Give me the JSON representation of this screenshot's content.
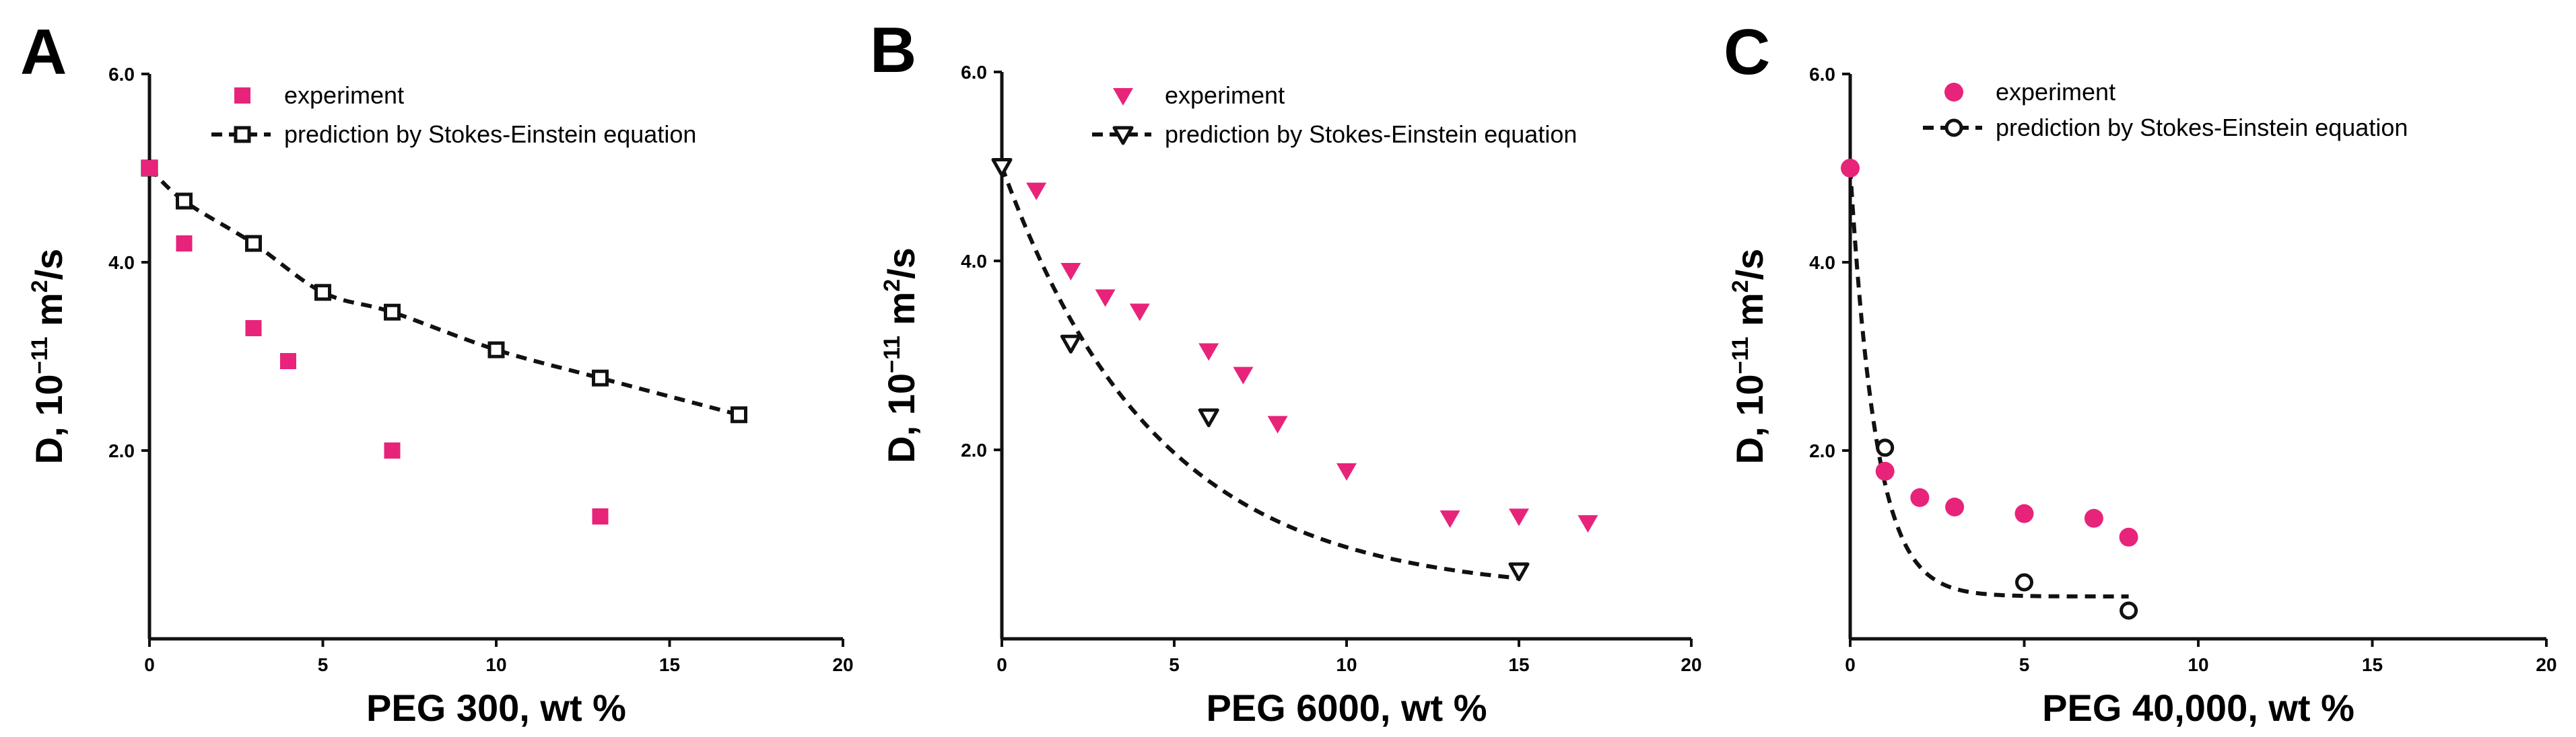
{
  "colors": {
    "experiment": "#e8237a",
    "prediction": "#111111",
    "axis": "#111111"
  },
  "chart_data": [
    {
      "type": "scatter",
      "panel_label": "A",
      "xlabel": "PEG 300, wt %",
      "ylabel": "D, 10",
      "ylabel_exp": "−11",
      "ylabel_unit_pre": " m",
      "ylabel_unit_sup": "2",
      "ylabel_unit_post": "/s",
      "xlim": [
        0,
        20
      ],
      "ylim": [
        0,
        6.0
      ],
      "x_ticks": [
        0,
        5,
        10,
        15,
        20
      ],
      "x_tick_labels": [
        "0",
        "5",
        "10",
        "15",
        "20"
      ],
      "y_ticks": [
        2.0,
        4.0,
        6.0
      ],
      "y_tick_labels": [
        "2.0",
        "4.0",
        "6.0"
      ],
      "marker_experiment": "square",
      "marker_prediction": "open-square",
      "curve": "spline",
      "series": [
        {
          "name": "experiment",
          "legend": "experiment",
          "points": [
            [
              0,
              5.0
            ],
            [
              1,
              4.2
            ],
            [
              3,
              3.3
            ],
            [
              4,
              2.95
            ],
            [
              7,
              2.0
            ],
            [
              13,
              1.3
            ]
          ]
        },
        {
          "name": "prediction",
          "legend": "prediction by Stokes-Einstein equation",
          "points": [
            [
              0,
              5.0
            ],
            [
              1,
              4.65
            ],
            [
              3,
              4.2
            ],
            [
              5,
              3.68
            ],
            [
              7,
              3.47
            ],
            [
              10,
              3.07
            ],
            [
              13,
              2.77
            ],
            [
              17,
              2.38
            ]
          ]
        }
      ]
    },
    {
      "type": "scatter",
      "panel_label": "B",
      "xlabel": "PEG 6000, wt %",
      "ylabel": "D, 10",
      "ylabel_exp": "−11",
      "ylabel_unit_pre": " m",
      "ylabel_unit_sup": "2",
      "ylabel_unit_post": "/s",
      "xlim": [
        0,
        20
      ],
      "ylim": [
        0,
        6.0
      ],
      "x_ticks": [
        0,
        5,
        10,
        15,
        20
      ],
      "x_tick_labels": [
        "0",
        "5",
        "10",
        "15",
        "20"
      ],
      "y_ticks": [
        2.0,
        4.0,
        6.0
      ],
      "y_tick_labels": [
        "2.0",
        "4.0",
        "6.0"
      ],
      "marker_experiment": "triangle-down",
      "marker_prediction": "open-triangle-down",
      "curve": "exp",
      "curve_params": {
        "y_inf": 0.48,
        "amplitude": 4.52,
        "tau": 4.5
      },
      "series": [
        {
          "name": "experiment",
          "legend": "experiment",
          "points": [
            [
              1,
              4.75
            ],
            [
              2,
              3.9
            ],
            [
              3,
              3.62
            ],
            [
              4,
              3.47
            ],
            [
              6,
              3.05
            ],
            [
              7,
              2.8
            ],
            [
              8,
              2.28
            ],
            [
              10,
              1.78
            ],
            [
              13,
              1.28
            ],
            [
              15,
              1.3
            ],
            [
              17,
              1.23
            ]
          ]
        },
        {
          "name": "prediction",
          "legend": "prediction by Stokes-Einstein equation",
          "points": [
            [
              0,
              5.0
            ],
            [
              2,
              3.13
            ],
            [
              6,
              2.35
            ],
            [
              15,
              0.72
            ]
          ]
        }
      ]
    },
    {
      "type": "scatter",
      "panel_label": "C",
      "xlabel": "PEG 40,000, wt %",
      "ylabel": "D, 10",
      "ylabel_exp": "−11",
      "ylabel_unit_pre": " m",
      "ylabel_unit_sup": "2",
      "ylabel_unit_post": "/s",
      "xlim": [
        0,
        20
      ],
      "ylim": [
        0,
        6.0
      ],
      "x_ticks": [
        0,
        5,
        10,
        15,
        20
      ],
      "x_tick_labels": [
        "0",
        "5",
        "10",
        "15",
        "20"
      ],
      "y_ticks": [
        2.0,
        4.0,
        6.0
      ],
      "y_tick_labels": [
        "2.0",
        "4.0",
        "6.0"
      ],
      "marker_experiment": "circle",
      "marker_prediction": "open-circle",
      "curve": "exp",
      "curve_params": {
        "y_inf": 0.45,
        "amplitude": 4.55,
        "tau": 0.75,
        "x_max": 8
      },
      "series": [
        {
          "name": "experiment",
          "legend": "experiment",
          "points": [
            [
              0,
              5.0
            ],
            [
              1,
              1.78
            ],
            [
              2,
              1.5
            ],
            [
              3,
              1.4
            ],
            [
              5,
              1.33
            ],
            [
              7,
              1.28
            ],
            [
              8,
              1.08
            ]
          ]
        },
        {
          "name": "prediction",
          "legend": "prediction by Stokes-Einstein equation",
          "points": [
            [
              0,
              5.0
            ],
            [
              1,
              2.03
            ],
            [
              5,
              0.6
            ],
            [
              8,
              0.3
            ]
          ]
        }
      ]
    }
  ]
}
